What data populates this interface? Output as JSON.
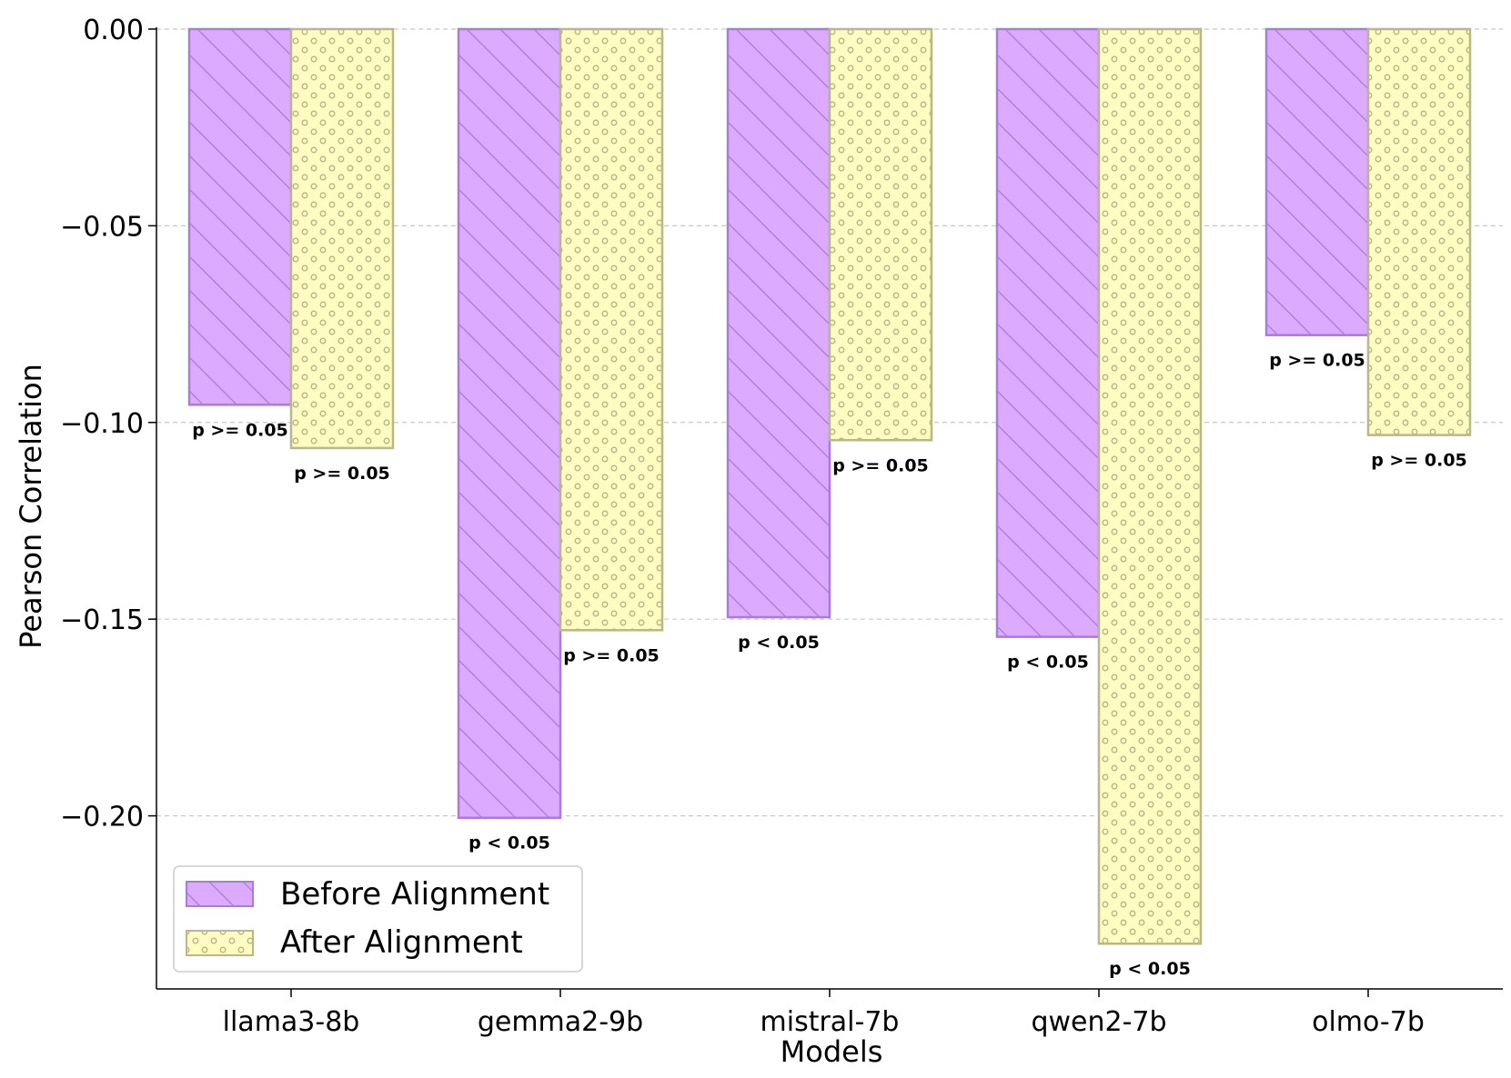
{
  "chart_data": {
    "type": "bar",
    "title": "",
    "xlabel": "Models",
    "ylabel": "Pearson Correlation",
    "categories": [
      "llama3-8b",
      "gemma2-9b",
      "mistral-7b",
      "qwen2-7b",
      "olmo-7b"
    ],
    "ylim": [
      -0.244,
      0.0
    ],
    "yticks": [
      0.0,
      -0.05,
      -0.1,
      -0.15,
      -0.2
    ],
    "ytick_labels": [
      "0.00",
      "−0.05",
      "−0.10",
      "−0.15",
      "−0.20"
    ],
    "grid": "horizontal dashed",
    "legend_position": "lower-left",
    "series": [
      {
        "name": "Before Alignment",
        "color": "#dcaaff",
        "edge_color": "#a87cd8",
        "hatch": "diagonal",
        "values": [
          -0.0955,
          -0.2005,
          -0.1495,
          -0.1545,
          -0.0778
        ],
        "p_labels": [
          "p >= 0.05",
          "p < 0.05",
          "p < 0.05",
          "p < 0.05",
          "p >= 0.05"
        ]
      },
      {
        "name": "After Alignment",
        "color": "#fefcc0",
        "edge_color": "#b8b888",
        "hatch": "circles",
        "values": [
          -0.1065,
          -0.1528,
          -0.1045,
          -0.2325,
          -0.1032
        ],
        "p_labels": [
          "p >= 0.05",
          "p >= 0.05",
          "p >= 0.05",
          "p < 0.05",
          "p >= 0.05"
        ]
      }
    ]
  }
}
